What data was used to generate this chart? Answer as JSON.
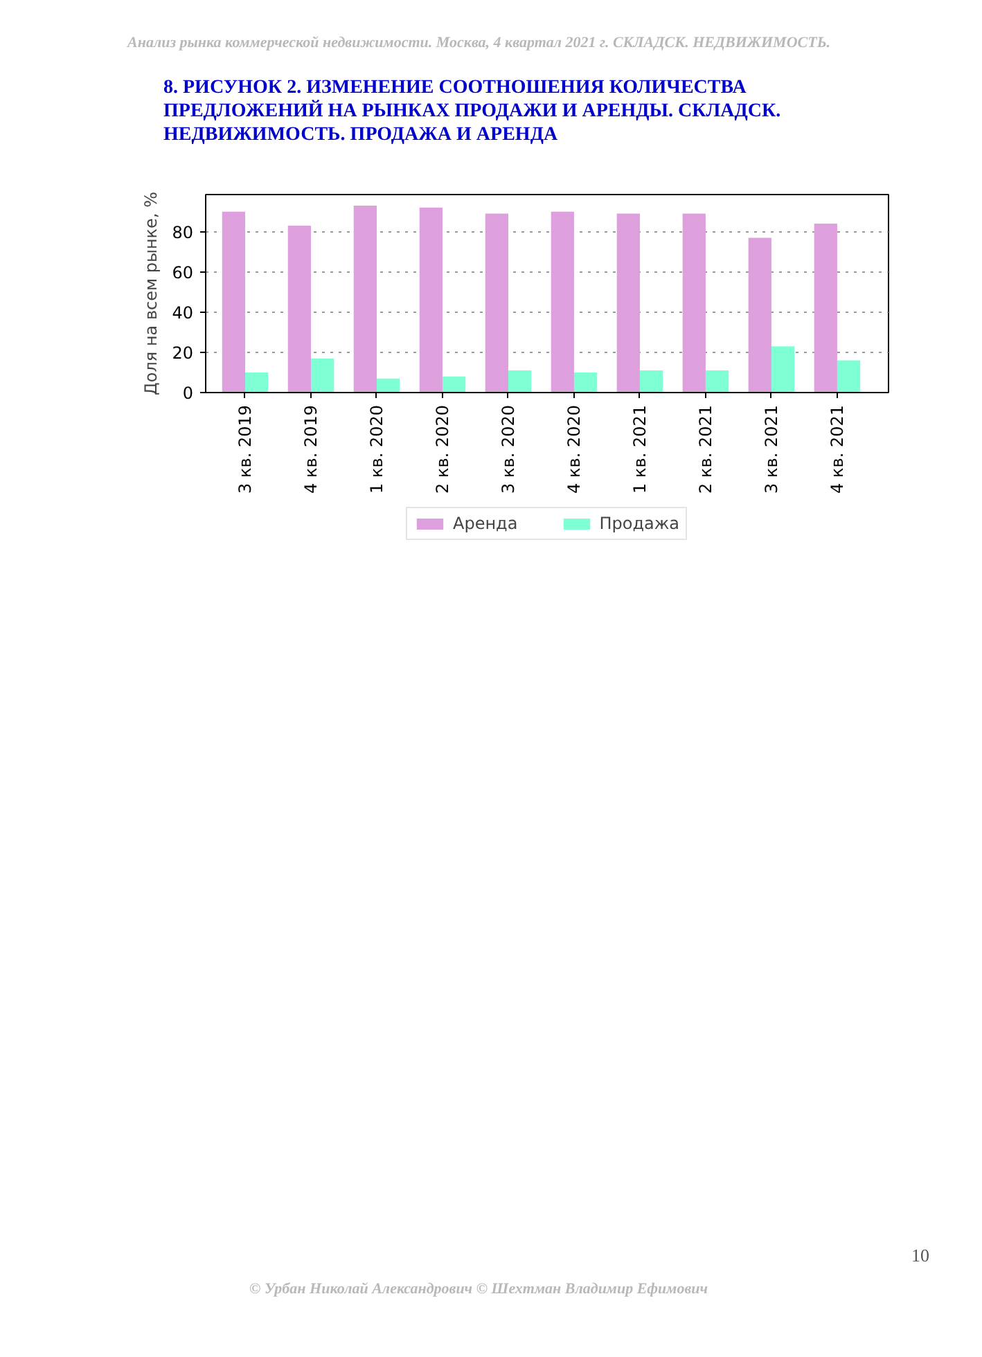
{
  "chart_data": {
    "type": "bar",
    "title": "8. РИСУНОК 2. ИЗМЕНЕНИЕ СООТНОШЕНИЯ КОЛИЧЕСТВА ПРЕДЛОЖЕНИЙ НА РЫНКАХ ПРОДАЖИ И АРЕНДЫ. СКЛАДСК. НЕДВИЖИМОСТЬ. ПРОДАЖА И АРЕНДА",
    "ylabel": "Доля на всем рынке, %",
    "categories": [
      "3 кв. 2019",
      "4 кв. 2019",
      "1 кв. 2020",
      "2 кв. 2020",
      "3 кв. 2020",
      "4 кв. 2020",
      "1 кв. 2021",
      "2 кв. 2021",
      "3 кв. 2021",
      "4 кв. 2021"
    ],
    "series": [
      {
        "name": "Аренда",
        "color": "#dda0dd",
        "values": [
          90,
          83,
          93,
          92,
          89,
          90,
          89,
          89,
          77,
          84
        ]
      },
      {
        "name": "Продажа",
        "color": "#7fffd4",
        "values": [
          10,
          17,
          7,
          8,
          11,
          10,
          11,
          11,
          23,
          16
        ]
      }
    ],
    "ylim": [
      0,
      98.5
    ],
    "yticks": [
      0,
      20,
      40,
      60,
      80
    ],
    "grid": "y",
    "legend": "bottom",
    "annotations": [
      "Анализ рынка коммерческой недвижимости.  Москва,  4 квартал 2021 г.   СКЛАДСК. НЕДВИЖИМОСТЬ.",
      "10",
      "© Урбан Николай Александрович   © Шехтман Владимир Ефимович"
    ]
  }
}
